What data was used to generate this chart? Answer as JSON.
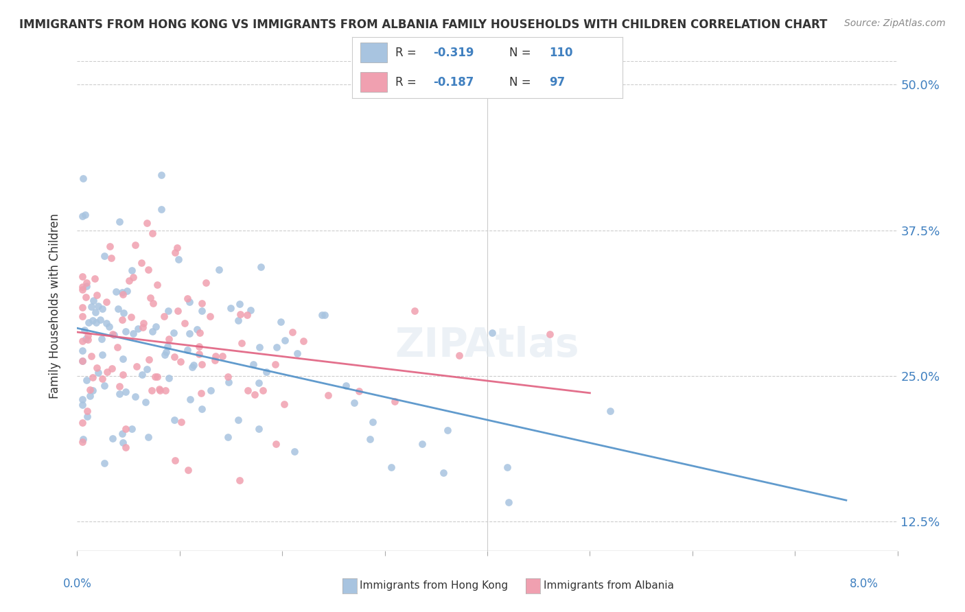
{
  "title": "IMMIGRANTS FROM HONG KONG VS IMMIGRANTS FROM ALBANIA FAMILY HOUSEHOLDS WITH CHILDREN CORRELATION CHART",
  "source": "Source: ZipAtlas.com",
  "ylabel": "Family Households with Children",
  "r_hk": -0.319,
  "n_hk": 110,
  "r_alb": -0.187,
  "n_alb": 97,
  "color_hk": "#a8c4e0",
  "color_alb": "#f0a0b0",
  "color_hk_line": "#5090c8",
  "color_alb_line": "#e06080",
  "color_blue_text": "#4080c0",
  "background_color": "#ffffff",
  "watermark": "ZIPAtlas",
  "xlim": [
    0.0,
    0.08
  ],
  "ylim": [
    0.1,
    0.52
  ],
  "yticks": [
    0.125,
    0.25,
    0.375,
    0.5
  ],
  "xticks": [
    0.0,
    0.01,
    0.02,
    0.03,
    0.04,
    0.05,
    0.06,
    0.07,
    0.08
  ]
}
